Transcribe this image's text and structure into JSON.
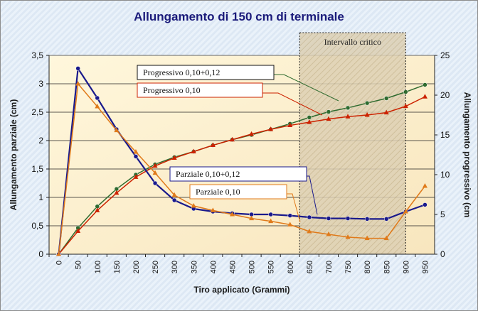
{
  "chart_data": {
    "type": "line",
    "title": "Allungamento di 150  cm di terminale",
    "xlabel": "Tiro applicato (Grammi)",
    "ylabel_left": "Allungamento parziale (cm)",
    "ylabel_right": "Allungamento progressivo (cm",
    "categories": [
      "0",
      "50",
      "100",
      "150",
      "200",
      "250",
      "300",
      "350",
      "400",
      "450",
      "500",
      "550",
      "600",
      "650",
      "700",
      "750",
      "800",
      "850",
      "900",
      "950"
    ],
    "y_left": {
      "min": 0,
      "max": 3.5,
      "ticks": [
        "0",
        "0,5",
        "1",
        "1,5",
        "2",
        "2,5",
        "3",
        "3,5"
      ]
    },
    "y_right": {
      "min": 0,
      "max": 25,
      "ticks": [
        "0",
        "5",
        "10",
        "15",
        "20",
        "25"
      ]
    },
    "grid": true,
    "band": {
      "label": "Intervallo critico",
      "from": 625,
      "to": 900
    },
    "series": [
      {
        "name": "Progressivo 0,10+0,12",
        "axis": "right",
        "color": "#2f6b2f",
        "marker": "circle",
        "values": [
          0,
          3.3,
          6.0,
          8.2,
          10.0,
          11.3,
          12.2,
          12.9,
          13.7,
          14.4,
          15.0,
          15.7,
          16.4,
          17.2,
          17.9,
          18.4,
          19.0,
          19.6,
          20.4,
          21.3
        ]
      },
      {
        "name": "Progressivo 0,10",
        "axis": "right",
        "color": "#cc2200",
        "marker": "triangle",
        "values": [
          0,
          2.9,
          5.5,
          7.7,
          9.7,
          11.1,
          12.1,
          12.9,
          13.7,
          14.4,
          15.1,
          15.7,
          16.2,
          16.6,
          17.0,
          17.3,
          17.5,
          17.8,
          18.6,
          19.8
        ]
      },
      {
        "name": "Parziale 0,10+0,12",
        "axis": "left",
        "color": "#1a1a8c",
        "marker": "circle",
        "values": [
          0,
          3.27,
          2.75,
          2.2,
          1.72,
          1.25,
          0.95,
          0.8,
          0.75,
          0.72,
          0.7,
          0.7,
          0.68,
          0.65,
          0.63,
          0.63,
          0.62,
          0.62,
          0.75,
          0.87
        ]
      },
      {
        "name": "Parziale 0,10",
        "axis": "left",
        "color": "#e07a1a",
        "marker": "triangle",
        "values": [
          0,
          3.0,
          2.6,
          2.18,
          1.8,
          1.43,
          1.04,
          0.85,
          0.77,
          0.7,
          0.63,
          0.58,
          0.52,
          0.4,
          0.35,
          0.3,
          0.28,
          0.28,
          0.75,
          1.2
        ]
      }
    ],
    "callouts": [
      {
        "text": "Progressivo 0,10+0,12",
        "series": 0
      },
      {
        "text": "Progressivo 0,10",
        "series": 1
      },
      {
        "text": "Parziale 0,10+0,12",
        "series": 2
      },
      {
        "text": "Parziale 0,10",
        "series": 3
      }
    ]
  }
}
